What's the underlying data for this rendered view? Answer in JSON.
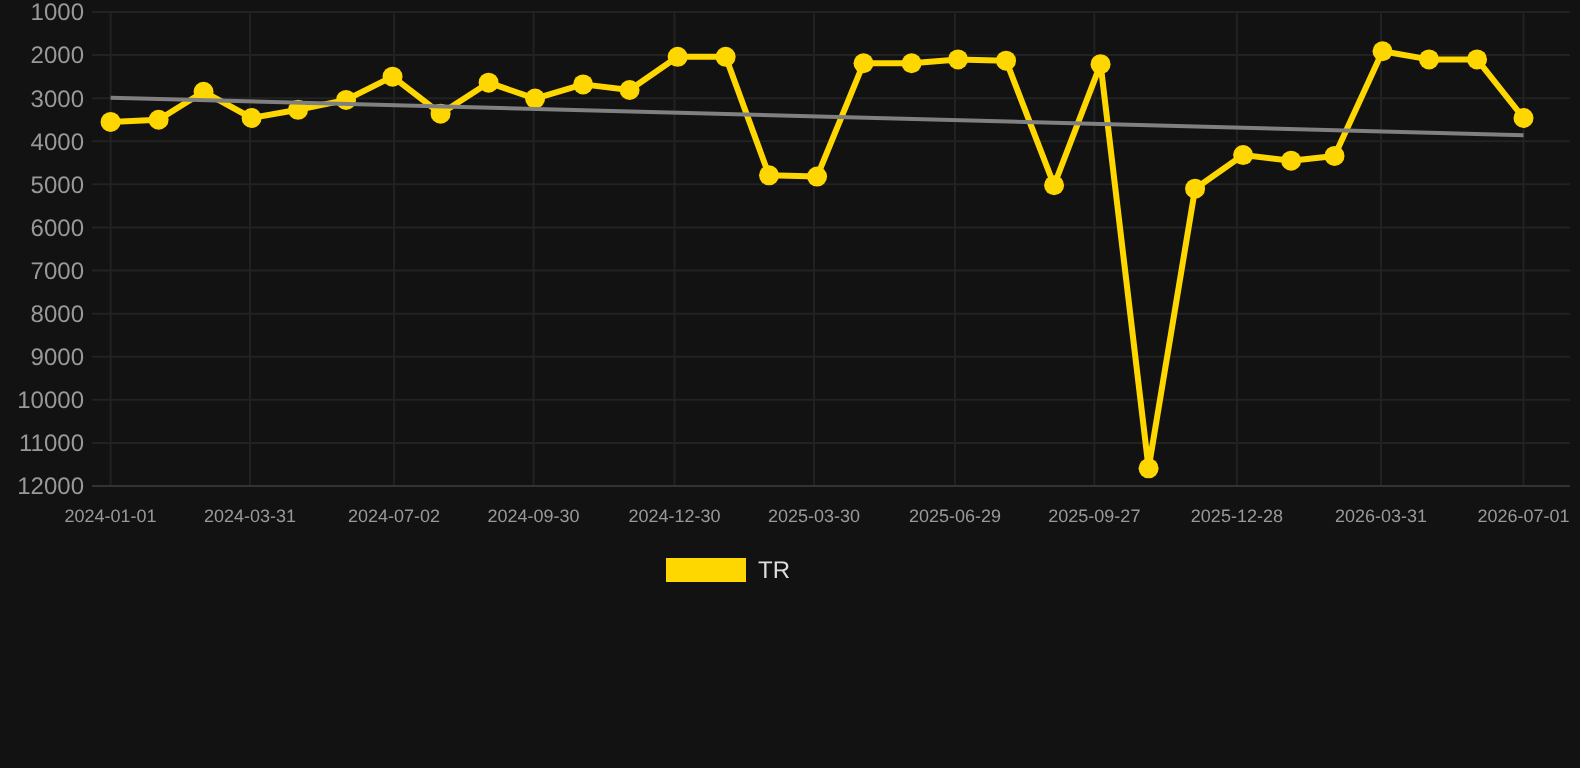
{
  "chart_data": {
    "type": "line",
    "x": [
      "2024-01-01",
      "2024-02-01",
      "2024-03-01",
      "2024-04-01",
      "2024-05-01",
      "2024-06-01",
      "2024-07-01",
      "2024-08-01",
      "2024-09-01",
      "2024-10-01",
      "2024-11-01",
      "2024-12-01",
      "2025-01-01",
      "2025-02-01",
      "2025-03-01",
      "2025-04-01",
      "2025-05-01",
      "2025-06-01",
      "2025-07-01",
      "2025-08-01",
      "2025-09-01",
      "2025-10-01",
      "2025-11-01",
      "2025-12-01",
      "2026-01-01",
      "2026-02-01",
      "2026-03-01",
      "2026-04-01",
      "2026-05-01",
      "2026-06-01",
      "2026-07-01"
    ],
    "series": [
      {
        "name": "TR",
        "color": "#ffd700",
        "marker": "circle",
        "values": [
          3550,
          3500,
          2850,
          3460,
          3270,
          3040,
          2500,
          3360,
          2640,
          3010,
          2680,
          2810,
          2040,
          2040,
          4790,
          4820,
          2190,
          2190,
          2100,
          2130,
          5020,
          2210,
          11590,
          5100,
          4320,
          4450,
          4340,
          1910,
          2100,
          2100,
          3460
        ]
      },
      {
        "type": "line",
        "color": "#808080",
        "marker": "none",
        "x": [
          "2024-01-01",
          "2026-07-01"
        ],
        "values": [
          2990,
          3860
        ]
      }
    ],
    "ylim": [
      12000,
      1000
    ],
    "yticks": [
      1000,
      2000,
      3000,
      4000,
      5000,
      6000,
      7000,
      8000,
      9000,
      10000,
      11000,
      12000
    ],
    "xlim": [
      "2023-12-20",
      "2026-07-31"
    ],
    "xticks": [
      {
        "value": "2024-01-01",
        "label": "2024-01-01"
      },
      {
        "value": "2024-03-31",
        "label": "2024-03-31"
      },
      {
        "value": "2024-07-02",
        "label": "2024-07-02"
      },
      {
        "value": "2024-09-30",
        "label": "2024-09-30"
      },
      {
        "value": "2024-12-30",
        "label": "2024-12-30"
      },
      {
        "value": "2025-03-30",
        "label": "2025-03-30"
      },
      {
        "value": "2025-06-29",
        "label": "2025-06-29"
      },
      {
        "value": "2025-09-27",
        "label": "2025-09-27"
      },
      {
        "value": "2025-12-28",
        "label": "2025-12-28"
      },
      {
        "value": "2026-03-31",
        "label": "2026-03-31"
      },
      {
        "value": "2026-07-01",
        "label": "2026-07-01"
      }
    ],
    "grid": true,
    "legend": "bottom"
  }
}
